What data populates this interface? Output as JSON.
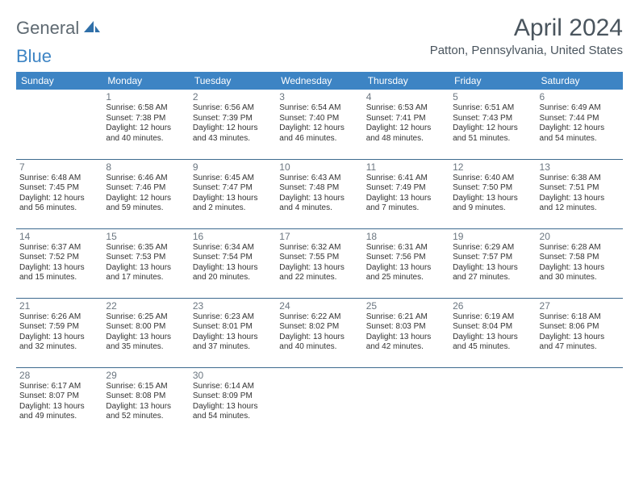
{
  "brand": {
    "part1": "General",
    "part2": "Blue"
  },
  "title": "April 2024",
  "location": "Patton, Pennsylvania, United States",
  "colors": {
    "header_bg": "#3d84c4",
    "header_text": "#ffffff",
    "row_border": "#3d6a8f",
    "title_text": "#4a555e",
    "daynum_text": "#6b7680",
    "body_text": "#333333",
    "logo_gray": "#5f6a72",
    "logo_blue": "#3d84c4",
    "page_bg": "#ffffff"
  },
  "fonts": {
    "title_pt": 30,
    "location_pt": 15,
    "header_pt": 12,
    "daynum_pt": 12,
    "info_pt": 10
  },
  "dayNames": [
    "Sunday",
    "Monday",
    "Tuesday",
    "Wednesday",
    "Thursday",
    "Friday",
    "Saturday"
  ],
  "weeks": [
    [
      null,
      {
        "n": "1",
        "sunrise": "6:58 AM",
        "sunset": "7:38 PM",
        "daylight": "12 hours and 40 minutes."
      },
      {
        "n": "2",
        "sunrise": "6:56 AM",
        "sunset": "7:39 PM",
        "daylight": "12 hours and 43 minutes."
      },
      {
        "n": "3",
        "sunrise": "6:54 AM",
        "sunset": "7:40 PM",
        "daylight": "12 hours and 46 minutes."
      },
      {
        "n": "4",
        "sunrise": "6:53 AM",
        "sunset": "7:41 PM",
        "daylight": "12 hours and 48 minutes."
      },
      {
        "n": "5",
        "sunrise": "6:51 AM",
        "sunset": "7:43 PM",
        "daylight": "12 hours and 51 minutes."
      },
      {
        "n": "6",
        "sunrise": "6:49 AM",
        "sunset": "7:44 PM",
        "daylight": "12 hours and 54 minutes."
      }
    ],
    [
      {
        "n": "7",
        "sunrise": "6:48 AM",
        "sunset": "7:45 PM",
        "daylight": "12 hours and 56 minutes."
      },
      {
        "n": "8",
        "sunrise": "6:46 AM",
        "sunset": "7:46 PM",
        "daylight": "12 hours and 59 minutes."
      },
      {
        "n": "9",
        "sunrise": "6:45 AM",
        "sunset": "7:47 PM",
        "daylight": "13 hours and 2 minutes."
      },
      {
        "n": "10",
        "sunrise": "6:43 AM",
        "sunset": "7:48 PM",
        "daylight": "13 hours and 4 minutes."
      },
      {
        "n": "11",
        "sunrise": "6:41 AM",
        "sunset": "7:49 PM",
        "daylight": "13 hours and 7 minutes."
      },
      {
        "n": "12",
        "sunrise": "6:40 AM",
        "sunset": "7:50 PM",
        "daylight": "13 hours and 9 minutes."
      },
      {
        "n": "13",
        "sunrise": "6:38 AM",
        "sunset": "7:51 PM",
        "daylight": "13 hours and 12 minutes."
      }
    ],
    [
      {
        "n": "14",
        "sunrise": "6:37 AM",
        "sunset": "7:52 PM",
        "daylight": "13 hours and 15 minutes."
      },
      {
        "n": "15",
        "sunrise": "6:35 AM",
        "sunset": "7:53 PM",
        "daylight": "13 hours and 17 minutes."
      },
      {
        "n": "16",
        "sunrise": "6:34 AM",
        "sunset": "7:54 PM",
        "daylight": "13 hours and 20 minutes."
      },
      {
        "n": "17",
        "sunrise": "6:32 AM",
        "sunset": "7:55 PM",
        "daylight": "13 hours and 22 minutes."
      },
      {
        "n": "18",
        "sunrise": "6:31 AM",
        "sunset": "7:56 PM",
        "daylight": "13 hours and 25 minutes."
      },
      {
        "n": "19",
        "sunrise": "6:29 AM",
        "sunset": "7:57 PM",
        "daylight": "13 hours and 27 minutes."
      },
      {
        "n": "20",
        "sunrise": "6:28 AM",
        "sunset": "7:58 PM",
        "daylight": "13 hours and 30 minutes."
      }
    ],
    [
      {
        "n": "21",
        "sunrise": "6:26 AM",
        "sunset": "7:59 PM",
        "daylight": "13 hours and 32 minutes."
      },
      {
        "n": "22",
        "sunrise": "6:25 AM",
        "sunset": "8:00 PM",
        "daylight": "13 hours and 35 minutes."
      },
      {
        "n": "23",
        "sunrise": "6:23 AM",
        "sunset": "8:01 PM",
        "daylight": "13 hours and 37 minutes."
      },
      {
        "n": "24",
        "sunrise": "6:22 AM",
        "sunset": "8:02 PM",
        "daylight": "13 hours and 40 minutes."
      },
      {
        "n": "25",
        "sunrise": "6:21 AM",
        "sunset": "8:03 PM",
        "daylight": "13 hours and 42 minutes."
      },
      {
        "n": "26",
        "sunrise": "6:19 AM",
        "sunset": "8:04 PM",
        "daylight": "13 hours and 45 minutes."
      },
      {
        "n": "27",
        "sunrise": "6:18 AM",
        "sunset": "8:06 PM",
        "daylight": "13 hours and 47 minutes."
      }
    ],
    [
      {
        "n": "28",
        "sunrise": "6:17 AM",
        "sunset": "8:07 PM",
        "daylight": "13 hours and 49 minutes."
      },
      {
        "n": "29",
        "sunrise": "6:15 AM",
        "sunset": "8:08 PM",
        "daylight": "13 hours and 52 minutes."
      },
      {
        "n": "30",
        "sunrise": "6:14 AM",
        "sunset": "8:09 PM",
        "daylight": "13 hours and 54 minutes."
      },
      null,
      null,
      null,
      null
    ]
  ],
  "labels": {
    "sunrise": "Sunrise:",
    "sunset": "Sunset:",
    "daylight": "Daylight:"
  }
}
